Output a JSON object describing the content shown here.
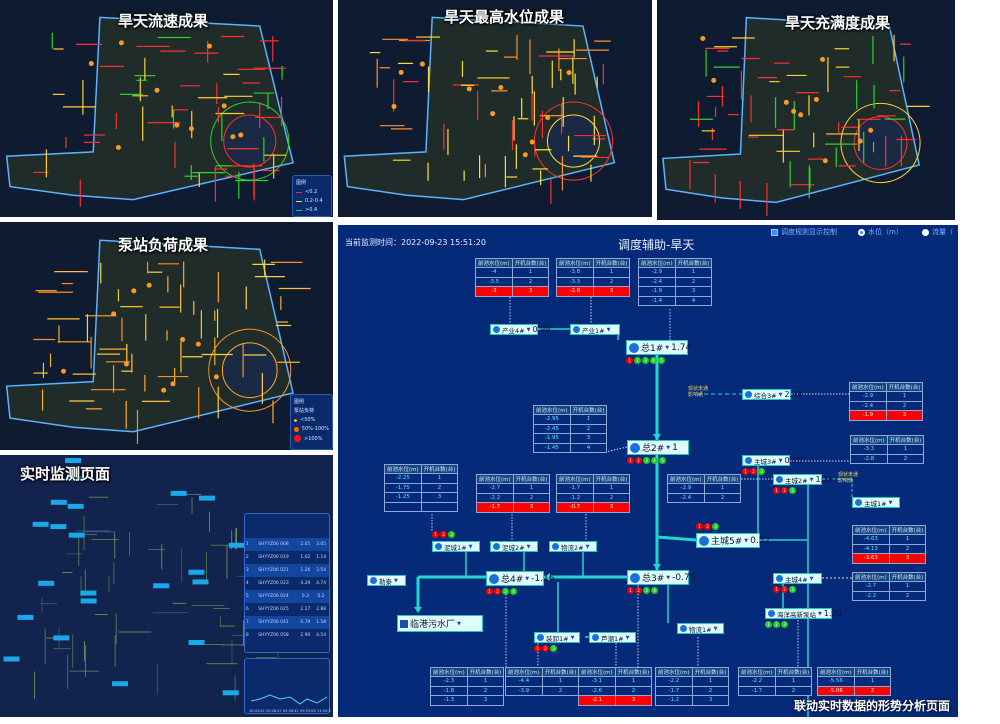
{
  "panels": {
    "flow": {
      "title": "旱天流速成果",
      "legend": {
        "title": "图例",
        "items": [
          {
            "label": "<0.2",
            "color": "#ff2a2a"
          },
          {
            "label": "0.2-0.4",
            "color": "#ffe02a"
          },
          {
            "label": ">0.4",
            "color": "#2ad42a"
          }
        ]
      }
    },
    "level": {
      "title": "旱天最高水位成果"
    },
    "fill": {
      "title": "旱天充满度成果"
    },
    "pump": {
      "title": "泵站负荷成果",
      "legend": {
        "title": "图例",
        "subtitle": "泵站负荷",
        "items": [
          {
            "label": "<50%",
            "color": "#ffb000"
          },
          {
            "label": "50%-100%",
            "color": "#ff6a00"
          },
          {
            "label": ">100%",
            "color": "#ff1010"
          }
        ]
      }
    },
    "realtime": {
      "title": "实时监测页面",
      "table": {
        "rows": [
          {
            "no": "1",
            "id": "SHYYZ06 008",
            "a": "2.05",
            "b": "3.05"
          },
          {
            "no": "2",
            "id": "SHYYZ06 019",
            "a": "1.02",
            "b": "1.14"
          },
          {
            "no": "3",
            "id": "SHYYZ06 021",
            "a": "1.26",
            "b": "3.54"
          },
          {
            "no": "4",
            "id": "SHYYZ06 023",
            "a": "4.29",
            "b": "4.74"
          },
          {
            "no": "5",
            "id": "SHYYZ06 024",
            "a": "0.3",
            "b": "0.2"
          },
          {
            "no": "6",
            "id": "SHYYZ06 025",
            "a": "2.17",
            "b": "2.88"
          },
          {
            "no": "7",
            "id": "SHYYZ06 041",
            "a": "0.79",
            "b": "1.58"
          },
          {
            "no": "8",
            "id": "SHYYZ06 058",
            "a": "2.90",
            "b": "4.54"
          }
        ]
      },
      "chart_xticks": [
        "10:43:02",
        "20:28:47",
        "05:28:41",
        "09:53:00",
        "11:45:20"
      ]
    }
  },
  "dispatch": {
    "time_label": "当前监测时间：2022-09-23 15:51:20",
    "title": "调度辅助-旱天",
    "controls": {
      "rule_toggle": "调度规则显示控制",
      "radio_level": "水位（m）",
      "radio_flow": "流量（"
    },
    "col_level": "前池水位(m)",
    "col_pumps": "开机台数(台)",
    "tables": [
      {
        "rows": [
          [
            "-4",
            "1"
          ],
          [
            "-3.5",
            "2"
          ],
          [
            "-3",
            "3"
          ]
        ],
        "alarm": 2
      },
      {
        "rows": [
          [
            "-3.8",
            "1"
          ],
          [
            "-3.3",
            "2"
          ],
          [
            "-2.8",
            "3"
          ]
        ],
        "alarm": 2
      },
      {
        "rows": [
          [
            "-2.9",
            "1"
          ],
          [
            "-2.4",
            "2"
          ],
          [
            "-1.9",
            "3"
          ],
          [
            "-1.4",
            "4"
          ]
        ],
        "alarm": -1
      },
      {
        "rows": [
          [
            "-2.95",
            "1"
          ],
          [
            "-2.45",
            "2"
          ],
          [
            "-1.95",
            "3"
          ],
          [
            "-1.45",
            "4"
          ]
        ],
        "alarm": -1
      },
      {
        "rows": [
          [
            "-2.25",
            "1"
          ],
          [
            "-1.75",
            "2"
          ],
          [
            "-1.25",
            "3"
          ],
          [
            "",
            ""
          ]
        ],
        "alarm": -1
      },
      {
        "rows": [
          [
            "-2.7",
            "1"
          ],
          [
            "-2.2",
            "2"
          ],
          [
            "-1.7",
            "3"
          ]
        ],
        "alarm": 2
      },
      {
        "rows": [
          [
            "-1.7",
            "1"
          ],
          [
            "-1.2",
            "2"
          ],
          [
            "-0.7",
            "3"
          ]
        ],
        "alarm": 2
      },
      {
        "rows": [
          [
            "-2.9",
            "1"
          ],
          [
            "-2.4",
            "2"
          ],
          [
            "-1.9",
            "3"
          ]
        ],
        "alarm": 2
      },
      {
        "rows": [
          [
            "-3.3",
            "1"
          ],
          [
            "-2.8",
            "2"
          ]
        ],
        "alarm": -1
      },
      {
        "rows": [
          [
            "-2.9",
            "1"
          ],
          [
            "-2.4",
            "2"
          ]
        ],
        "alarm": -1
      },
      {
        "rows": [
          [
            "-4.63",
            "1"
          ],
          [
            "-4.13",
            "2"
          ],
          [
            "-3.63",
            "3"
          ]
        ],
        "alarm": 2
      },
      {
        "rows": [
          [
            "-2.7",
            "1"
          ],
          [
            "-2.2",
            "2"
          ]
        ],
        "alarm": -1
      },
      {
        "rows": [
          [
            "-2.3",
            "1"
          ],
          [
            "-1.8",
            "2"
          ],
          [
            "-1.3",
            "3"
          ]
        ],
        "alarm": -1
      },
      {
        "rows": [
          [
            "-4.4",
            "1"
          ],
          [
            "-3.9",
            "2"
          ]
        ],
        "alarm": -1
      },
      {
        "rows": [
          [
            "-3.1",
            "1"
          ],
          [
            "-2.6",
            "2"
          ],
          [
            "-2.1",
            "3"
          ]
        ],
        "alarm": 2
      },
      {
        "rows": [
          [
            "-2.2",
            "1"
          ],
          [
            "-1.7",
            "2"
          ],
          [
            "-1.2",
            "3"
          ]
        ],
        "alarm": -1
      },
      {
        "rows": [
          [
            "-2.2",
            "1"
          ],
          [
            "-1.7",
            "2"
          ]
        ],
        "alarm": -1
      },
      {
        "rows": [
          [
            "-5.56",
            "1"
          ],
          [
            "-5.06",
            "2"
          ]
        ],
        "alarm": 1
      }
    ],
    "nodes": [
      {
        "name": "产业4#",
        "value": "0.99"
      },
      {
        "name": "产业1#",
        "value": ""
      },
      {
        "name": "总1#",
        "value": "1.74",
        "status": "rgggg"
      },
      {
        "name": "综合3#",
        "value": "2.74"
      },
      {
        "name": "总2#",
        "value": "1",
        "status": "rrggg"
      },
      {
        "name": "主城3#",
        "value": "0.15",
        "status": "rrg"
      },
      {
        "name": "主城2#",
        "value": "1.26",
        "status": "rrg"
      },
      {
        "name": "主城1#",
        "value": ""
      },
      {
        "name": "泥城1#",
        "value": "",
        "status": "rrg"
      },
      {
        "name": "泥城2#",
        "value": ""
      },
      {
        "name": "物流2#",
        "value": ""
      },
      {
        "name": "主城5#",
        "value": "0.32",
        "status": "rrg"
      },
      {
        "name": "总4#",
        "value": "-1.16",
        "status": "rrgg"
      },
      {
        "name": "总3#",
        "value": "-0.76",
        "status": "rrgg"
      },
      {
        "name": "物流1#",
        "value": ""
      },
      {
        "name": "勒泰",
        "value": ""
      },
      {
        "name": "装卸1#",
        "value": "",
        "status": "rrg"
      },
      {
        "name": "芦潮1#",
        "value": ""
      },
      {
        "name": "主城4#",
        "value": "",
        "status": "rrg"
      },
      {
        "name": "海洋高新泵站",
        "value": "1.29",
        "status": "ggg"
      }
    ],
    "plant": "临港污水厂",
    "notes": [
      {
        "l1": "现状未通",
        "l2": "影响通"
      },
      {
        "l1": "现状未通",
        "l2": "影响通"
      }
    ],
    "caption": "联动实时数据的形势分析页面"
  },
  "colors": {
    "accent": "#1ec8c8",
    "alarm": "#ff0000",
    "panel_bg": "#062a7a"
  }
}
